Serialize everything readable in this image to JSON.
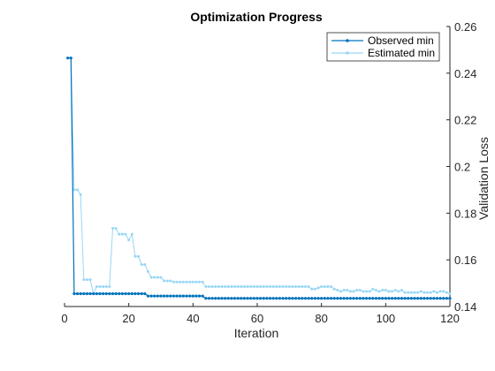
{
  "chart_data": {
    "type": "line",
    "title": "Optimization Progress",
    "xlabel": "Iteration",
    "ylabel": "Validation Loss",
    "xlim": [
      0,
      120
    ],
    "ylim": [
      0.14,
      0.26
    ],
    "xticks": [
      "0",
      "20",
      "40",
      "60",
      "80",
      "100",
      "120"
    ],
    "yticks": [
      "0.14",
      "0.16",
      "0.18",
      "0.2",
      "0.22",
      "0.24",
      "0.26"
    ],
    "grid": false,
    "legend_position": "top-right",
    "series": [
      {
        "name": "Observed min",
        "color": "#0072BD",
        "x": [
          1,
          2,
          3,
          4,
          5,
          6,
          7,
          8,
          9,
          10,
          11,
          12,
          13,
          14,
          15,
          16,
          17,
          18,
          19,
          20,
          21,
          22,
          23,
          24,
          25,
          26,
          27,
          28,
          29,
          30,
          31,
          32,
          33,
          34,
          35,
          36,
          37,
          38,
          39,
          40,
          41,
          42,
          43,
          44,
          45,
          46,
          47,
          48,
          49,
          50,
          51,
          52,
          53,
          54,
          55,
          56,
          57,
          58,
          59,
          60,
          61,
          62,
          63,
          64,
          65,
          66,
          67,
          68,
          69,
          70,
          71,
          72,
          73,
          74,
          75,
          76,
          77,
          78,
          79,
          80,
          81,
          82,
          83,
          84,
          85,
          86,
          87,
          88,
          89,
          90,
          91,
          92,
          93,
          94,
          95,
          96,
          97,
          98,
          99,
          100,
          101,
          102,
          103,
          104,
          105,
          106,
          107,
          108,
          109,
          110,
          111,
          112,
          113,
          114,
          115,
          116,
          117,
          118,
          119,
          120
        ],
        "values": [
          0.2465,
          0.2465,
          0.1455,
          0.1455,
          0.1455,
          0.1455,
          0.1455,
          0.1455,
          0.1455,
          0.1455,
          0.1455,
          0.1455,
          0.1455,
          0.1455,
          0.1455,
          0.1455,
          0.1455,
          0.1455,
          0.1455,
          0.1455,
          0.1455,
          0.1455,
          0.1455,
          0.1455,
          0.1455,
          0.1445,
          0.1445,
          0.1445,
          0.1445,
          0.1445,
          0.1445,
          0.1445,
          0.1445,
          0.1445,
          0.1445,
          0.1445,
          0.1445,
          0.1445,
          0.1445,
          0.1445,
          0.1445,
          0.1445,
          0.1445,
          0.1435,
          0.1435,
          0.1435,
          0.1435,
          0.1435,
          0.1435,
          0.1435,
          0.1435,
          0.1435,
          0.1435,
          0.1435,
          0.1435,
          0.1435,
          0.1435,
          0.1435,
          0.1435,
          0.1435,
          0.1435,
          0.1435,
          0.1435,
          0.1435,
          0.1435,
          0.1435,
          0.1435,
          0.1435,
          0.1435,
          0.1435,
          0.1435,
          0.1435,
          0.1435,
          0.1435,
          0.1435,
          0.1435,
          0.1435,
          0.1435,
          0.1435,
          0.1435,
          0.1435,
          0.1435,
          0.1435,
          0.1435,
          0.1435,
          0.1435,
          0.1435,
          0.1435,
          0.1435,
          0.1435,
          0.1435,
          0.1435,
          0.1435,
          0.1435,
          0.1435,
          0.1435,
          0.1435,
          0.1435,
          0.1435,
          0.1435,
          0.1435,
          0.1435,
          0.1435,
          0.1435,
          0.1435,
          0.1435,
          0.1435,
          0.1435,
          0.1435,
          0.1435,
          0.1435,
          0.1435,
          0.1435,
          0.1435,
          0.1435,
          0.1435,
          0.1435,
          0.1435,
          0.1435,
          0.1435
        ]
      },
      {
        "name": "Estimated min",
        "color": "#99D7F5",
        "x": [
          1,
          2,
          3,
          4,
          5,
          6,
          7,
          8,
          9,
          10,
          11,
          12,
          13,
          14,
          15,
          16,
          17,
          18,
          19,
          20,
          21,
          22,
          23,
          24,
          25,
          26,
          27,
          28,
          29,
          30,
          31,
          32,
          33,
          34,
          35,
          36,
          37,
          38,
          39,
          40,
          41,
          42,
          43,
          44,
          45,
          46,
          47,
          48,
          49,
          50,
          51,
          52,
          53,
          54,
          55,
          56,
          57,
          58,
          59,
          60,
          61,
          62,
          63,
          64,
          65,
          66,
          67,
          68,
          69,
          70,
          71,
          72,
          73,
          74,
          75,
          76,
          77,
          78,
          79,
          80,
          81,
          82,
          83,
          84,
          85,
          86,
          87,
          88,
          89,
          90,
          91,
          92,
          93,
          94,
          95,
          96,
          97,
          98,
          99,
          100,
          101,
          102,
          103,
          104,
          105,
          106,
          107,
          108,
          109,
          110,
          111,
          112,
          113,
          114,
          115,
          116,
          117,
          118,
          119,
          120
        ],
        "values": [
          0.2465,
          0.2465,
          0.19,
          0.19,
          0.188,
          0.1515,
          0.1515,
          0.1515,
          0.1455,
          0.1485,
          0.1485,
          0.1485,
          0.1485,
          0.1485,
          0.1735,
          0.1735,
          0.171,
          0.171,
          0.171,
          0.1685,
          0.171,
          0.1615,
          0.1615,
          0.158,
          0.158,
          0.155,
          0.1525,
          0.1525,
          0.1525,
          0.1525,
          0.151,
          0.151,
          0.151,
          0.1505,
          0.1505,
          0.1505,
          0.1505,
          0.1505,
          0.1505,
          0.1505,
          0.1505,
          0.1505,
          0.1505,
          0.1485,
          0.1485,
          0.1485,
          0.1485,
          0.1485,
          0.1485,
          0.1485,
          0.1485,
          0.1485,
          0.1485,
          0.1485,
          0.1485,
          0.1485,
          0.1485,
          0.1485,
          0.1485,
          0.1485,
          0.1485,
          0.1485,
          0.1485,
          0.1485,
          0.1485,
          0.1485,
          0.1485,
          0.1485,
          0.1485,
          0.1485,
          0.1485,
          0.1485,
          0.1485,
          0.1485,
          0.1485,
          0.1485,
          0.1475,
          0.1475,
          0.148,
          0.1485,
          0.1485,
          0.1485,
          0.1485,
          0.1475,
          0.147,
          0.1465,
          0.147,
          0.147,
          0.1465,
          0.1465,
          0.147,
          0.147,
          0.1465,
          0.1465,
          0.1465,
          0.1475,
          0.147,
          0.1465,
          0.147,
          0.147,
          0.1465,
          0.1465,
          0.147,
          0.1465,
          0.147,
          0.146,
          0.146,
          0.146,
          0.146,
          0.146,
          0.1465,
          0.146,
          0.146,
          0.146,
          0.1465,
          0.146,
          0.1465,
          0.1465,
          0.146,
          0.1455
        ]
      }
    ]
  }
}
